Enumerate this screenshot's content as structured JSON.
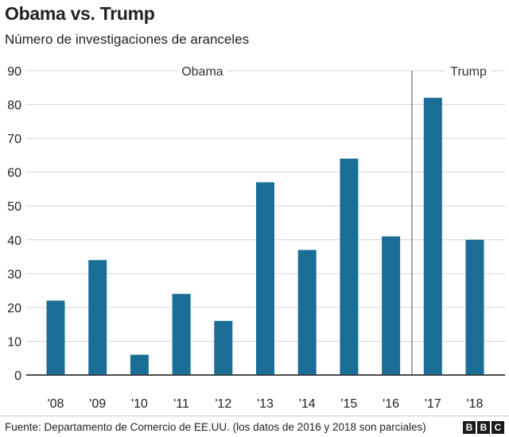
{
  "chart_data": {
    "type": "bar",
    "title": "Obama vs. Trump",
    "subtitle": "Número de investigaciones de aranceles",
    "categories": [
      "'08",
      "'09",
      "'10",
      "'11",
      "'12",
      "'13",
      "'14",
      "'15",
      "'16",
      "'17",
      "'18"
    ],
    "values": [
      22,
      34,
      6,
      24,
      16,
      57,
      37,
      64,
      41,
      82,
      40
    ],
    "ylim": [
      0,
      90
    ],
    "yticks": [
      0,
      10,
      20,
      30,
      40,
      50,
      60,
      70,
      80,
      90
    ],
    "xlabel": "",
    "ylabel": "",
    "grid": true,
    "bar_color": "#1a6e96",
    "annotations": [
      {
        "label": "Obama"
      },
      {
        "label": "Trump"
      }
    ]
  },
  "footer": {
    "source": "Fuente: Departamento de Comercio de EE.UU. (los datos de 2016 y 2018 son parciales)",
    "logo_letters": [
      "B",
      "B",
      "C"
    ]
  }
}
